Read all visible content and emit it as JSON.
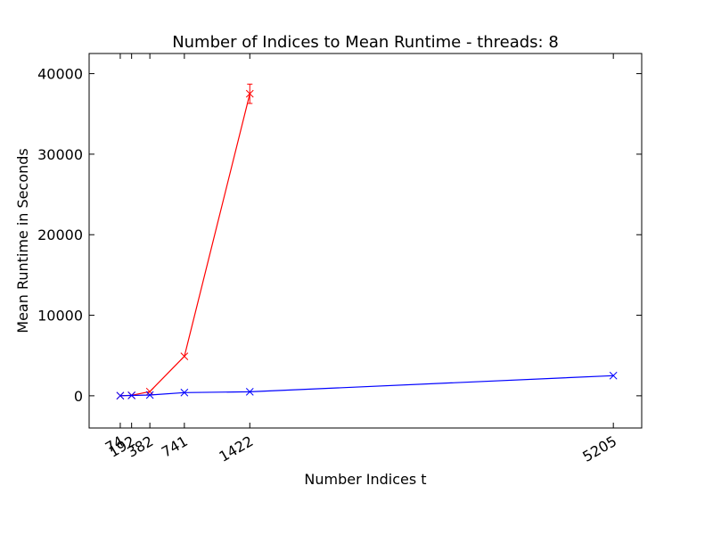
{
  "chart_data": {
    "type": "line",
    "title": "Number of Indices to Mean Runtime - threads: 8",
    "xlabel": "Number Indices t",
    "ylabel": "Mean Runtime in Seconds",
    "xlim": [
      -250,
      5500
    ],
    "ylim": [
      -4000,
      42500
    ],
    "xticks": [
      74,
      192,
      382,
      741,
      1422,
      5205
    ],
    "yticks": [
      0,
      10000,
      20000,
      30000,
      40000
    ],
    "grid": false,
    "series": [
      {
        "color": "#ff0000",
        "marker": "x",
        "x": [
          74,
          192,
          382,
          741,
          1422
        ],
        "y": [
          5,
          60,
          520,
          4900,
          37500
        ],
        "yerr": [
          0,
          0,
          0,
          0,
          1200
        ]
      },
      {
        "color": "#0000ff",
        "marker": "x",
        "x": [
          74,
          192,
          382,
          741,
          1422,
          5205
        ],
        "y": [
          10,
          40,
          100,
          400,
          500,
          2500
        ],
        "yerr": [
          0,
          0,
          0,
          0,
          0,
          0
        ]
      }
    ]
  }
}
